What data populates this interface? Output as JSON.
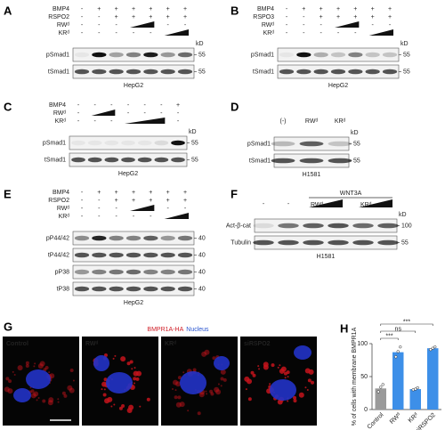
{
  "panels": [
    {
      "label": "A",
      "treatments": [
        {
          "name": "BMP4",
          "marks": [
            "-",
            "+",
            "+",
            "+",
            "+",
            "+",
            "+"
          ]
        },
        {
          "name": "RSPO2",
          "marks": [
            "-",
            "-",
            "+",
            "+",
            "+",
            "+",
            "+"
          ]
        },
        {
          "name": "RWᵈ",
          "marks": [
            "-",
            "-",
            "-",
            null,
            null,
            "-",
            "-"
          ]
        },
        {
          "name": "KRᵈ",
          "marks": [
            "-",
            "-",
            "-",
            "-",
            "-",
            null,
            null
          ]
        }
      ],
      "blots": [
        {
          "name": "pSmad1",
          "kd": "55"
        },
        {
          "name": "tSmad1",
          "kd": "55"
        }
      ],
      "kd_unit": "kD",
      "cell_line": "HepG2"
    },
    {
      "label": "B",
      "treatments": [
        {
          "name": "BMP4",
          "marks": [
            "-",
            "+",
            "+",
            "+",
            "+",
            "+",
            "+"
          ]
        },
        {
          "name": "RSPO3",
          "marks": [
            "-",
            "-",
            "+",
            "+",
            "+",
            "+",
            "+"
          ]
        },
        {
          "name": "RWᵈ",
          "marks": [
            "-",
            "-",
            "-",
            null,
            null,
            "-",
            "-"
          ]
        },
        {
          "name": "KRᵈ",
          "marks": [
            "-",
            "-",
            "-",
            "-",
            "-",
            null,
            null
          ]
        }
      ],
      "blots": [
        {
          "name": "pSmad1",
          "kd": "55"
        },
        {
          "name": "tSmad1",
          "kd": "55"
        }
      ],
      "kd_unit": "kD",
      "cell_line": "HepG2"
    },
    {
      "label": "C",
      "treatments": [
        {
          "name": "BMP4",
          "marks": [
            "-",
            "-",
            "-",
            "-",
            "-",
            "-",
            "+"
          ]
        },
        {
          "name": "RWᵈ",
          "marks": [
            "-",
            null,
            null,
            "-",
            "-",
            "-",
            "-"
          ]
        },
        {
          "name": "KRᵈ",
          "marks": [
            "-",
            "-",
            "-",
            null,
            null,
            null,
            "-"
          ]
        }
      ],
      "blots": [
        {
          "name": "pSmad1",
          "kd": "55"
        },
        {
          "name": "tSmad1",
          "kd": "55"
        }
      ],
      "kd_unit": "kD",
      "cell_line": "HepG2"
    },
    {
      "label": "D",
      "columns": [
        "(-)",
        "RWᵈ",
        "KRᵈ"
      ],
      "blots": [
        {
          "name": "pSmad1",
          "kd": "55"
        },
        {
          "name": "tSmad1",
          "kd": "55"
        }
      ],
      "kd_unit": "kD",
      "cell_line": "H1581"
    },
    {
      "label": "E",
      "treatments": [
        {
          "name": "BMP4",
          "marks": [
            "-",
            "+",
            "+",
            "+",
            "+",
            "+",
            "+"
          ]
        },
        {
          "name": "RSPO2",
          "marks": [
            "-",
            "-",
            "+",
            "+",
            "+",
            "+",
            "+"
          ]
        },
        {
          "name": "RWᵈ",
          "marks": [
            "-",
            "-",
            "-",
            null,
            null,
            "-",
            "-"
          ]
        },
        {
          "name": "KRᵈ",
          "marks": [
            "-",
            "-",
            "-",
            "-",
            "-",
            null,
            null
          ]
        }
      ],
      "blots": [
        {
          "name": "pP44/42",
          "kd": "40"
        },
        {
          "name": "tP44/42",
          "kd": "40"
        },
        {
          "name": "pP38",
          "kd": "40"
        },
        {
          "name": "tP38",
          "kd": "40"
        }
      ],
      "cell_line": "HepG2"
    },
    {
      "label": "F",
      "header": "WNT3A",
      "treatments": [
        {
          "marks": [
            "-",
            "-"
          ]
        }
      ],
      "wedges": [
        "RWᵈ",
        "KRᵈ"
      ],
      "blots": [
        {
          "name": "Act-β-cat",
          "kd": "100"
        },
        {
          "name": "Tubulin",
          "kd": "55"
        }
      ],
      "kd_unit": "kD",
      "cell_line": "H1581"
    }
  ],
  "panel_g": {
    "label": "G",
    "title": [
      "BMPR1A-HA",
      "Nucleus"
    ],
    "images": [
      "Control",
      "RWᵈ",
      "KRᵈ",
      "siRSPO2"
    ]
  },
  "chart_data": {
    "type": "bar",
    "label": "H",
    "ylabel": "% of cells with membrane BMPR1A",
    "categories": [
      "Control",
      "RWᵈ",
      "KRᵈ",
      "siRSPO2"
    ],
    "values": [
      32,
      87,
      31,
      93
    ],
    "points": [
      [
        27,
        34,
        38
      ],
      [
        80,
        88,
        95
      ],
      [
        30,
        31,
        33
      ],
      [
        91,
        93,
        95
      ]
    ],
    "colors": [
      "#9a9a9a",
      "#3d8fe8",
      "#3d8fe8",
      "#3d8fe8"
    ],
    "ylim": [
      0,
      100
    ],
    "yticks": [
      0,
      50,
      100
    ],
    "annotations": [
      "***",
      "ns",
      "***"
    ]
  }
}
